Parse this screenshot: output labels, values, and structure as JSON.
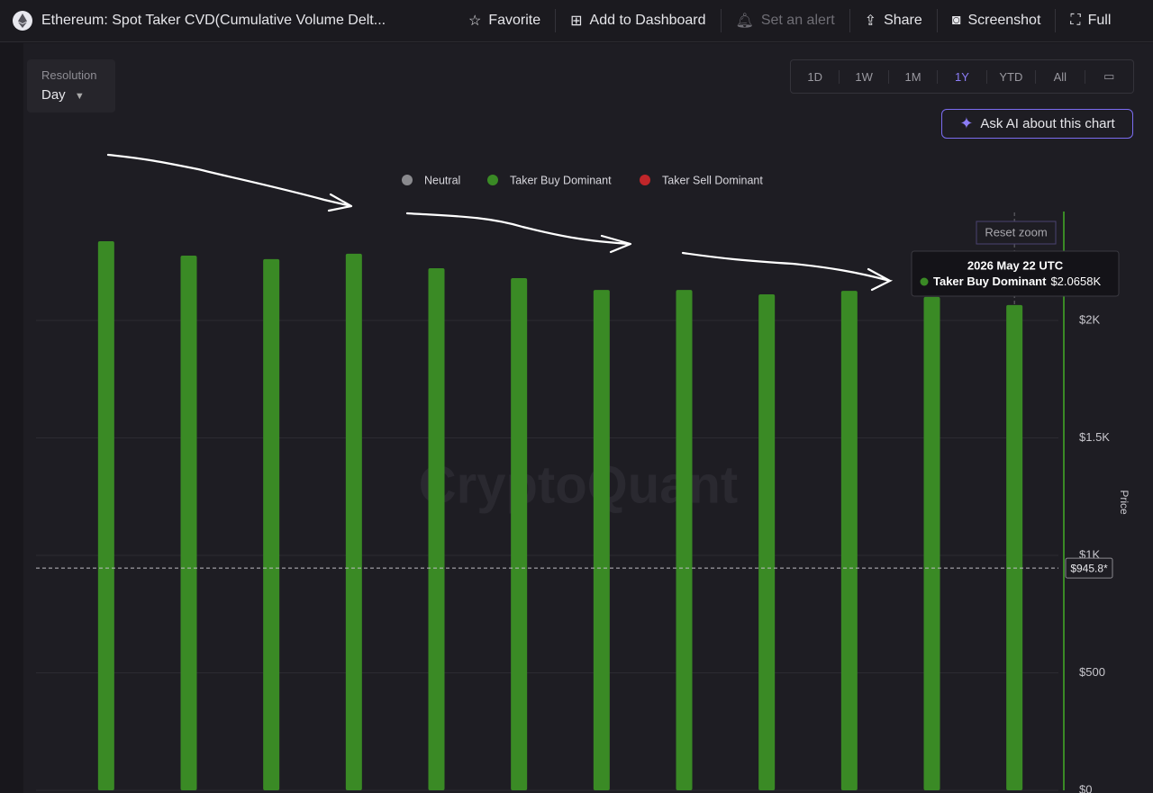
{
  "toolbar": {
    "title": "Ethereum: Spot Taker CVD(Cumulative Volume Delt...",
    "buttons": [
      "Favorite",
      "Add to Dashboard",
      "Set an alert",
      "Share",
      "Screenshot",
      "Full"
    ]
  },
  "controls": {
    "resolution_label": "Resolution",
    "resolution_value": "Day",
    "ranges": [
      "1D",
      "1W",
      "1M",
      "1Y",
      "YTD",
      "All"
    ],
    "active_range": 3,
    "ask_ai": "Ask AI about this chart",
    "reset_zoom": "Reset zoom"
  },
  "chart_data": {
    "type": "bar",
    "watermark": "CryptoQuant",
    "y_axis_label": "Price",
    "categories": [
      null,
      null,
      null,
      null,
      null,
      null,
      null,
      null,
      null,
      null,
      null,
      null
    ],
    "series": [
      {
        "name": "Neutral",
        "color": "#8a8a8e",
        "values": [
          null,
          null,
          null,
          null,
          null,
          null,
          null,
          null,
          null,
          null,
          null,
          null
        ]
      },
      {
        "name": "Taker Buy Dominant",
        "color": "#3a8a25",
        "values": [
          2337,
          2276,
          2261,
          2284,
          2222,
          2180,
          2130,
          2130,
          2111,
          2126,
          2100,
          2065.8
        ]
      },
      {
        "name": "Taker Sell Dominant",
        "color": "#c0262a",
        "values": [
          null,
          null,
          null,
          null,
          null,
          null,
          null,
          null,
          null,
          null,
          null,
          null
        ]
      }
    ],
    "ylim": [
      0,
      2500
    ],
    "yticks": [
      {
        "value": 0,
        "label": "$0"
      },
      {
        "value": 500,
        "label": "$500"
      },
      {
        "value": 1000,
        "label": "$1K"
      },
      {
        "value": 1500,
        "label": "$1.5K"
      },
      {
        "value": 2000,
        "label": "$2K"
      }
    ],
    "grid": true,
    "price_line": {
      "value": 945.8,
      "label": "$945.8*"
    },
    "tooltip": {
      "title": "2026 May 22 UTC",
      "series": 1,
      "index": 11,
      "value_label": "$2.0658K"
    }
  }
}
